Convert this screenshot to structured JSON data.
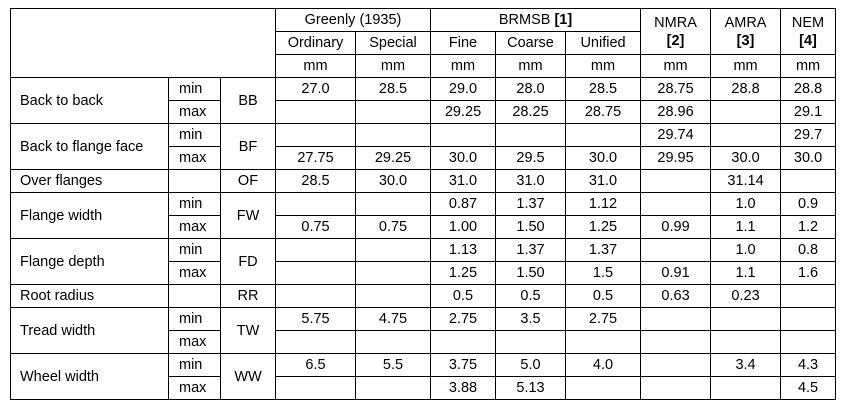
{
  "table": {
    "header": {
      "groups": [
        {
          "name": "Greenly (1935)",
          "span": 2,
          "subs": [
            "Ordinary",
            "Special"
          ]
        },
        {
          "name": "BRMSB",
          "ref": "[1]",
          "span": 3,
          "subs": [
            "Fine",
            "Coarse",
            "Unified"
          ]
        },
        {
          "name": "NMRA",
          "ref": "[2]",
          "span": 1
        },
        {
          "name": "AMRA",
          "ref": "[3]",
          "span": 1
        },
        {
          "name": "NEM",
          "ref": "[4]",
          "span": 1
        }
      ],
      "units": [
        "mm",
        "mm",
        "mm",
        "mm",
        "mm",
        "mm",
        "mm",
        "mm"
      ]
    },
    "rows": [
      {
        "label": "Back to back",
        "code": "BB",
        "rows": [
          {
            "sub": "min",
            "values": [
              "27.0",
              "28.5",
              "29.0",
              "28.0",
              "28.5",
              "28.75",
              "28.8",
              "28.8"
            ]
          },
          {
            "sub": "max",
            "values": [
              null,
              null,
              "29.25",
              "28.25",
              "28.75",
              "28.96",
              null,
              "29.1"
            ]
          }
        ]
      },
      {
        "label": "Back to flange face",
        "code": "BF",
        "rows": [
          {
            "sub": "min",
            "values": [
              null,
              null,
              null,
              null,
              null,
              "29.74",
              null,
              "29.7"
            ]
          },
          {
            "sub": "max",
            "values": [
              "27.75",
              "29.25",
              "30.0",
              "29.5",
              "30.0",
              "29.95",
              "30.0",
              "30.0"
            ]
          }
        ]
      },
      {
        "label": "Over flanges",
        "code": "OF",
        "rows": [
          {
            "values": [
              "28.5",
              "30.0",
              "31.0",
              "31.0",
              "31.0",
              null,
              "31.14",
              null
            ]
          }
        ]
      },
      {
        "label": "Flange width",
        "code": "FW",
        "rows": [
          {
            "sub": "min",
            "values": [
              null,
              null,
              "0.87",
              "1.37",
              "1.12",
              null,
              "1.0",
              "0.9"
            ]
          },
          {
            "sub": "max",
            "values": [
              "0.75",
              "0.75",
              "1.00",
              "1.50",
              "1.25",
              "0.99",
              "1.1",
              "1.2"
            ]
          }
        ]
      },
      {
        "label": "Flange depth",
        "code": "FD",
        "rows": [
          {
            "sub": "min",
            "values": [
              null,
              null,
              "1.13",
              "1.37",
              "1.37",
              null,
              "1.0",
              "0.8"
            ]
          },
          {
            "sub": "max",
            "values": [
              null,
              null,
              "1.25",
              "1.50",
              "1.5",
              "0.91",
              "1.1",
              "1.6"
            ]
          }
        ]
      },
      {
        "label": "Root radius",
        "code": "RR",
        "rows": [
          {
            "values": [
              null,
              null,
              "0.5",
              "0.5",
              "0.5",
              "0.63",
              "0.23",
              null
            ]
          }
        ]
      },
      {
        "label": "Tread width",
        "code": "TW",
        "rows": [
          {
            "sub": "min",
            "values": [
              "5.75",
              "4.75",
              "2.75",
              "3.5",
              "2.75",
              null,
              null,
              null
            ]
          },
          {
            "sub": "max",
            "values": [
              null,
              null,
              null,
              null,
              null,
              null,
              null,
              null
            ]
          }
        ]
      },
      {
        "label": "Wheel width",
        "code": "WW",
        "rows": [
          {
            "sub": "min",
            "values": [
              "6.5",
              "5.5",
              "3.75",
              "5.0",
              "4.0",
              null,
              "3.4",
              "4.3"
            ]
          },
          {
            "sub": "max",
            "values": [
              null,
              null,
              "3.88",
              "5.13",
              null,
              null,
              null,
              "4.5"
            ]
          }
        ]
      }
    ]
  }
}
